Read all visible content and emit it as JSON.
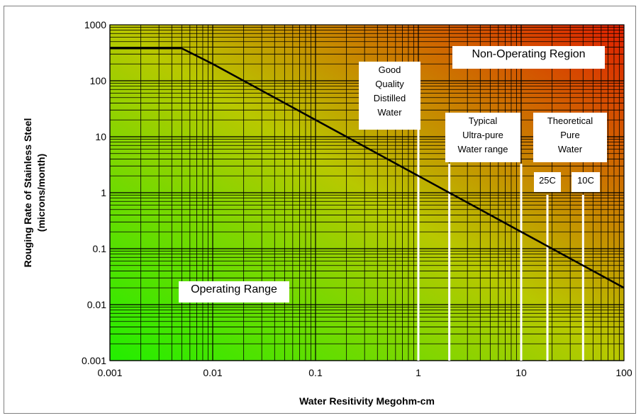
{
  "chart_data": {
    "type": "line",
    "x_scale": "log",
    "y_scale": "log",
    "xlim": [
      0.001,
      100
    ],
    "ylim": [
      0.001,
      1000
    ],
    "x_ticks": [
      "0.001",
      "0.01",
      "0.1",
      "1",
      "10",
      "100"
    ],
    "y_ticks": [
      "1000",
      "100",
      "10",
      "1",
      "0.1",
      "0.01",
      "0.001"
    ],
    "xlabel": "Water Resitivity Megohm-cm",
    "ylabel_lines": [
      "Rouging Rate of Stainless Steel",
      "(microns/month)"
    ],
    "grid": true,
    "background": "gradient: green (bottom-left) to red (top-right)",
    "series": [
      {
        "x": [
          0.001,
          0.005,
          0.01,
          0.1,
          1,
          10,
          100
        ],
        "y": [
          380,
          380,
          200,
          20,
          2,
          0.2,
          0.02
        ]
      }
    ],
    "markers": [
      {
        "x": 1,
        "label_lines": [
          "Good",
          "Quality",
          "Distilled",
          "Water"
        ]
      },
      {
        "x": 2,
        "label_lines": [
          "Typical",
          "Ultra-pure",
          "Water range"
        ]
      },
      {
        "x": 10
      },
      {
        "x": 18,
        "label_lines": [
          "25C"
        ]
      },
      {
        "x": 40,
        "label_lines": [
          "10C"
        ]
      }
    ],
    "annotations": {
      "non_operating": "Non-Operating Region",
      "operating": "Operating Range",
      "theoretical_lines": [
        "Theoretical",
        "Pure",
        "Water"
      ]
    },
    "colors": {
      "line": "#000000",
      "grid": "#000000",
      "marker": "#ffffff",
      "low": "#22ee00",
      "high": "#e02000"
    }
  }
}
